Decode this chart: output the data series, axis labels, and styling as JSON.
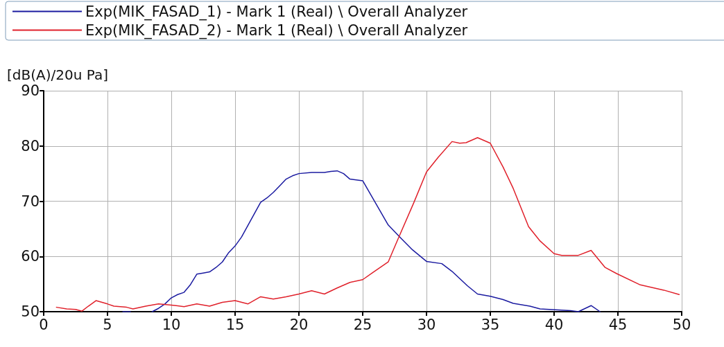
{
  "chart_data": {
    "type": "line",
    "ylabel": "[dB(A)/20u Pa]",
    "xlim": [
      0,
      50
    ],
    "xticks": [
      0,
      5,
      10,
      15,
      20,
      25,
      30,
      35,
      40,
      45,
      50
    ],
    "ylim": [
      50,
      90
    ],
    "yticks": [
      50,
      60,
      70,
      80,
      90
    ],
    "grid": true,
    "legend": "top",
    "marker": "none",
    "line_style": "solid",
    "series": [
      {
        "name": "Exp(MIK_FASAD_1) - Mark 1 (Real) \\ Overall Analyzer",
        "color": "#1a1aa0",
        "x": [
          6.2,
          6.8,
          7.5,
          8.5,
          9,
          9.5,
          10,
          10.5,
          11,
          11.5,
          12,
          12.5,
          13,
          13.5,
          14,
          14.5,
          15,
          15.5,
          16,
          16.5,
          17,
          17.5,
          18,
          18.5,
          19,
          19.5,
          20,
          21,
          22,
          22.5,
          23,
          23.5,
          24,
          25,
          27,
          28,
          28.9,
          30,
          31.2,
          32,
          33.2,
          34,
          35,
          36,
          36.8,
          38.1,
          38.9,
          41.3,
          41.9,
          42.9,
          43.6
        ],
        "values": [
          50,
          50,
          null,
          50,
          50.6,
          51.4,
          52.5,
          53.1,
          53.5,
          54.9,
          56.8,
          57,
          57.2,
          58,
          59,
          60.7,
          61.9,
          63.5,
          65.6,
          67.7,
          69.8,
          70.6,
          71.6,
          72.8,
          74,
          74.6,
          75,
          75.2,
          75.2,
          75.4,
          75.5,
          75,
          74,
          73.7,
          65.7,
          63.3,
          61.2,
          59.1,
          58.7,
          57.3,
          54.7,
          53.2,
          52.8,
          52.2,
          51.5,
          51,
          50.5,
          50.2,
          50,
          51.1,
          50
        ]
      },
      {
        "name": "Exp(MIK_FASAD_2) - Mark 1 (Real) \\ Overall Analyzer",
        "color": "#e0202a",
        "x": [
          1,
          1.8,
          2.5,
          3,
          3.5,
          4.1,
          5,
          5.5,
          6.5,
          7,
          8,
          9,
          10,
          11,
          12,
          13,
          14,
          15,
          16,
          17,
          18,
          19,
          20,
          21,
          22,
          23,
          24,
          25,
          25.8,
          27,
          27.7,
          29,
          30,
          30.9,
          32,
          32.6,
          33.1,
          34,
          35,
          36,
          36.8,
          38,
          38.9,
          40,
          40.6,
          41.9,
          42.9,
          44,
          44.9,
          46.7,
          48.6,
          49.8
        ],
        "values": [
          50.8,
          50.5,
          50.4,
          50.1,
          51,
          52,
          51.4,
          51,
          50.8,
          50.5,
          51,
          51.4,
          51.2,
          50.9,
          51.4,
          51,
          51.7,
          52,
          51.4,
          52.7,
          52.3,
          52.7,
          53.2,
          53.8,
          53.2,
          54.3,
          55.3,
          55.8,
          57.1,
          59,
          62.8,
          69.7,
          75.3,
          77.9,
          80.8,
          80.5,
          80.6,
          81.5,
          80.5,
          76.2,
          72.3,
          65.4,
          62.8,
          60.5,
          60.2,
          60.2,
          61.1,
          58,
          56.9,
          54.9,
          53.9,
          53.1
        ]
      }
    ]
  }
}
